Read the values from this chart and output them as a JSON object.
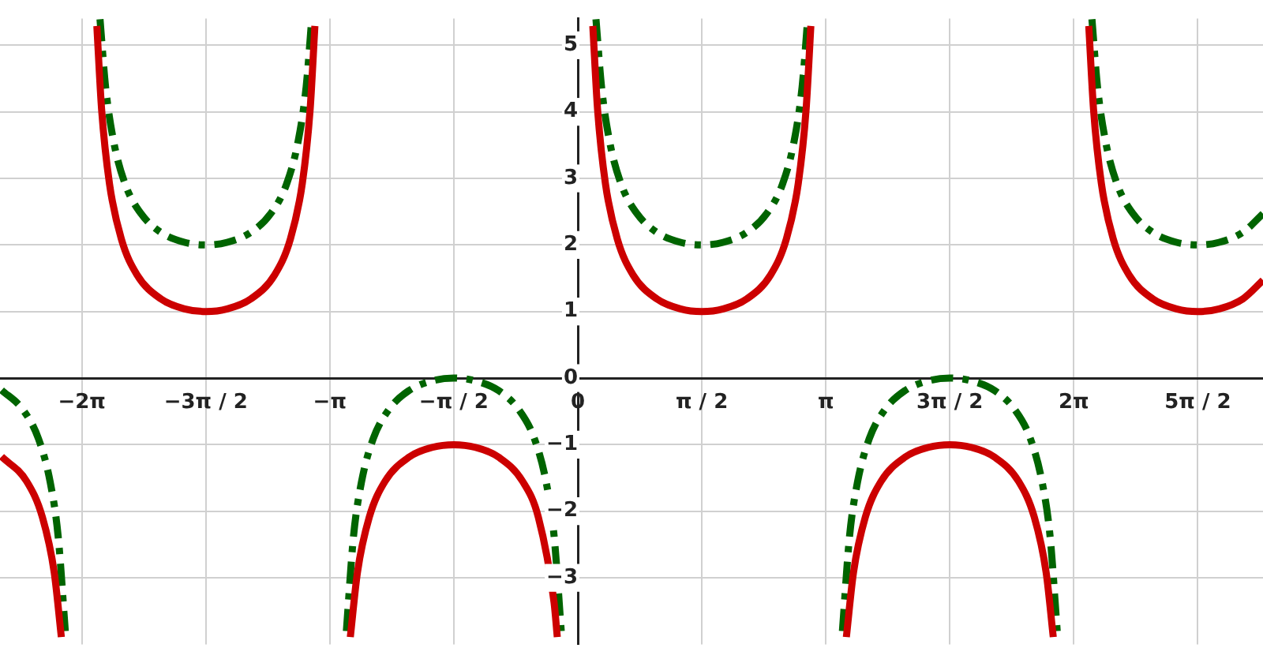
{
  "chart_data": {
    "type": "line",
    "xlim": [
      -7.32,
      8.68
    ],
    "ylim": [
      -4,
      5.4
    ],
    "xticks": [
      {
        "value": -6.283,
        "label": "−2π"
      },
      {
        "value": -4.712,
        "label": "−3π / 2"
      },
      {
        "value": -3.142,
        "label": "−π"
      },
      {
        "value": -1.571,
        "label": "−π / 2"
      },
      {
        "value": 0,
        "label": "0"
      },
      {
        "value": 1.571,
        "label": "π / 2"
      },
      {
        "value": 3.142,
        "label": "π"
      },
      {
        "value": 4.712,
        "label": "3π / 2"
      },
      {
        "value": 6.283,
        "label": "2π"
      },
      {
        "value": 7.854,
        "label": "5π / 2"
      }
    ],
    "yticks": [
      {
        "value": -3,
        "label": "−3"
      },
      {
        "value": -2,
        "label": "−2"
      },
      {
        "value": -1,
        "label": "−1"
      },
      0,
      1,
      2,
      3,
      4,
      5
    ],
    "grid": true,
    "legend": false,
    "marker": "none",
    "series": [
      {
        "type": "line",
        "color": "#cc0000",
        "line_style": "solid",
        "x": [
          -7.3,
          -6.983,
          -6.783,
          -6.633,
          -6.543,
          -6.283,
          -6.093,
          -6.033,
          -5.933,
          -5.783,
          -5.583,
          -5.283,
          -4.983,
          -4.712,
          -4.441,
          -4.141,
          -3.841,
          -3.641,
          -3.491,
          -3.391,
          -3.331,
          -3.142,
          -2.882,
          -2.792,
          -2.642,
          -2.442,
          -2.142,
          -1.842,
          -1.571,
          -1.3,
          -1.0,
          -0.7,
          -0.5,
          -0.3,
          -0.26,
          0,
          0.19,
          0.25,
          0.35,
          0.5,
          0.7,
          1.0,
          1.3,
          1.571,
          1.842,
          2.142,
          2.442,
          2.642,
          2.792,
          2.892,
          2.952,
          3.142,
          3.402,
          3.492,
          3.642,
          3.842,
          4.142,
          4.442,
          4.712,
          4.983,
          5.283,
          5.583,
          5.783,
          5.933,
          6.023,
          6.283,
          6.473,
          6.533,
          6.633,
          6.783,
          6.983,
          7.283,
          7.583,
          7.854,
          8.125,
          8.425,
          8.68
        ],
        "values": [
          -1.18,
          -1.55,
          -2.09,
          -2.92,
          -3.89,
          null,
          5.29,
          4.04,
          2.92,
          2.09,
          1.55,
          1.19,
          1.04,
          1,
          1.04,
          1.19,
          1.55,
          2.09,
          2.92,
          4.04,
          5.29,
          null,
          -3.89,
          -2.92,
          -2.09,
          -1.55,
          -1.19,
          -1.04,
          -1,
          -1.04,
          -1.19,
          -1.55,
          -2.09,
          -3.38,
          -3.89,
          null,
          5.29,
          4.04,
          2.92,
          2.09,
          1.55,
          1.19,
          1.04,
          1,
          1.04,
          1.19,
          1.55,
          2.09,
          2.92,
          4.04,
          5.29,
          null,
          -3.89,
          -2.92,
          -2.09,
          -1.55,
          -1.19,
          -1.04,
          -1,
          -1.04,
          -1.19,
          -1.55,
          -2.09,
          -2.92,
          -3.89,
          null,
          5.29,
          4.04,
          2.92,
          2.09,
          1.55,
          1.19,
          1.04,
          1,
          1.04,
          1.19,
          1.47
        ]
      },
      {
        "type": "line",
        "color": "#006400",
        "line_style": "dashed",
        "x": [
          -7.3,
          -7.033,
          -6.833,
          -6.683,
          -6.583,
          -6.493,
          -6.283,
          -6.053,
          -5.983,
          -5.883,
          -5.733,
          -5.533,
          -5.283,
          -4.983,
          -4.712,
          -4.441,
          -4.141,
          -3.891,
          -3.691,
          -3.541,
          -3.441,
          -3.371,
          -3.142,
          -2.932,
          -2.842,
          -2.742,
          -2.592,
          -2.392,
          -2.142,
          -1.842,
          -1.571,
          -1.3,
          -1.0,
          -0.75,
          -0.55,
          -0.4,
          -0.3,
          -0.21,
          0,
          0.23,
          0.3,
          0.4,
          0.55,
          0.75,
          1.0,
          1.3,
          1.571,
          1.842,
          2.142,
          2.392,
          2.592,
          2.742,
          2.842,
          2.912,
          3.142,
          3.352,
          3.442,
          3.542,
          3.692,
          3.892,
          4.142,
          4.442,
          4.712,
          4.983,
          5.283,
          5.533,
          5.733,
          5.883,
          5.983,
          6.073,
          6.283,
          6.513,
          6.583,
          6.683,
          6.833,
          7.033,
          7.283,
          7.583,
          7.854,
          8.125,
          8.425,
          8.68
        ],
        "values": [
          -0.18,
          -0.47,
          -0.91,
          -1.57,
          -2.38,
          -3.8,
          null,
          5.39,
          4.38,
          3.57,
          2.91,
          2.47,
          2.19,
          2.04,
          2,
          2.04,
          2.19,
          2.47,
          2.91,
          3.57,
          4.38,
          5.39,
          null,
          -3.8,
          -2.38,
          -1.57,
          -0.91,
          -0.47,
          -0.19,
          -0.04,
          0,
          -0.04,
          -0.19,
          -0.47,
          -0.91,
          -1.57,
          -2.38,
          -3.8,
          null,
          5.39,
          4.38,
          3.57,
          2.91,
          2.47,
          2.19,
          2.04,
          2,
          2.04,
          2.19,
          2.47,
          2.91,
          3.57,
          4.38,
          5.39,
          null,
          -3.8,
          -2.38,
          -1.57,
          -0.91,
          -0.47,
          -0.19,
          -0.04,
          0,
          -0.04,
          -0.19,
          -0.47,
          -0.91,
          -1.57,
          -2.38,
          -3.8,
          null,
          5.39,
          4.38,
          3.57,
          2.91,
          2.47,
          2.19,
          2.04,
          2,
          2.04,
          2.19,
          2.47
        ]
      }
    ]
  }
}
